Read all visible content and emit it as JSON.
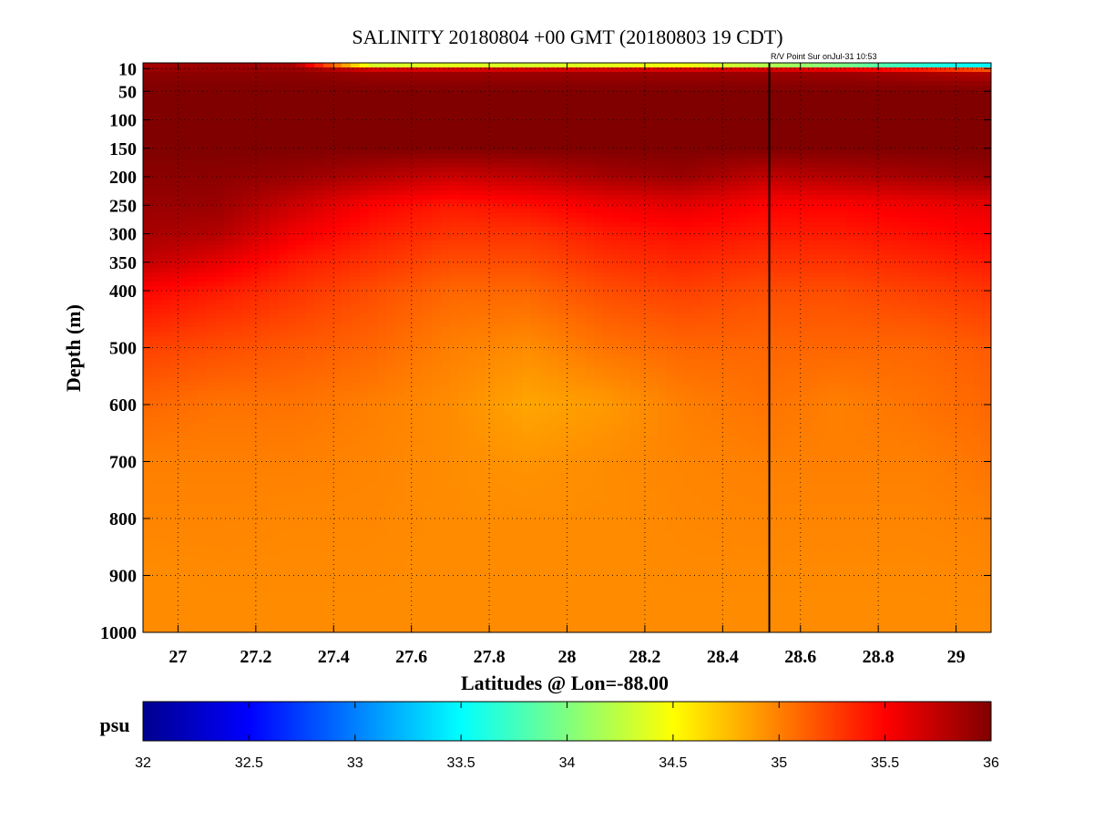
{
  "chart_data": {
    "type": "heatmap",
    "title": "SALINITY 20180804 +00 GMT (20180803 19 CDT)",
    "annotation": "R/V Point Sur onJul-31 10:53",
    "xlabel": "Latitudes @ Lon=-88.00",
    "ylabel": "Depth (m)",
    "xlim": [
      26.91,
      29.09
    ],
    "ylim": [
      1000,
      0
    ],
    "x_ticks": [
      27,
      27.2,
      27.4,
      27.6,
      27.8,
      28,
      28.2,
      28.4,
      28.6,
      28.8,
      29
    ],
    "x_tick_labels": [
      "27",
      "27.2",
      "27.4",
      "27.6",
      "27.8",
      "28",
      "28.2",
      "28.4",
      "28.6",
      "28.8",
      "29"
    ],
    "y_ticks": [
      10,
      50,
      100,
      150,
      200,
      250,
      300,
      350,
      400,
      500,
      600,
      700,
      800,
      900,
      1000
    ],
    "y_tick_labels": [
      "10",
      "50",
      "100",
      "150",
      "200",
      "250",
      "300",
      "350",
      "400",
      "500",
      "600",
      "700",
      "800",
      "900",
      "1000"
    ],
    "grid": true,
    "vertical_marker_latitude": 28.52,
    "colorbar": {
      "label": "psu",
      "range": [
        32,
        36
      ],
      "ticks": [
        32,
        32.5,
        33,
        33.5,
        34,
        34.5,
        35,
        35.5,
        36
      ],
      "tick_labels": [
        "32",
        "32.5",
        "33",
        "33.5",
        "34",
        "34.5",
        "35",
        "35.5",
        "36"
      ],
      "colormap": "jet",
      "placement": "bottom"
    },
    "latitudes": [
      26.9,
      27.1,
      27.3,
      27.5,
      27.7,
      27.9,
      28.1,
      28.3,
      28.5,
      28.7,
      28.9,
      29.1
    ],
    "depths": [
      0,
      10,
      20,
      50,
      100,
      150,
      200,
      250,
      300,
      350,
      400,
      500,
      600,
      700,
      800,
      900,
      1000
    ],
    "salinity": [
      [
        35.8,
        35.9,
        35.8,
        33.5,
        33.6,
        33.5,
        33.6,
        33.7,
        33.3,
        33.0,
        32.6,
        32.4
      ],
      [
        35.9,
        35.9,
        35.9,
        35.6,
        35.6,
        35.6,
        35.6,
        35.6,
        35.6,
        35.5,
        35.3,
        35.0
      ],
      [
        35.95,
        35.95,
        35.95,
        35.9,
        35.9,
        35.9,
        35.9,
        35.9,
        35.9,
        35.9,
        35.85,
        35.8
      ],
      [
        36.0,
        36.0,
        36.0,
        36.0,
        36.0,
        36.0,
        36.0,
        36.0,
        36.0,
        36.0,
        36.0,
        36.0
      ],
      [
        36.0,
        36.0,
        36.0,
        36.0,
        36.0,
        36.0,
        36.0,
        36.0,
        36.0,
        36.0,
        36.0,
        36.0
      ],
      [
        36.0,
        36.0,
        36.0,
        36.0,
        36.0,
        36.0,
        36.0,
        36.0,
        36.0,
        36.0,
        36.0,
        36.0
      ],
      [
        35.95,
        35.95,
        35.9,
        35.8,
        35.7,
        35.75,
        35.85,
        35.9,
        35.75,
        35.8,
        35.85,
        35.9
      ],
      [
        35.9,
        35.9,
        35.7,
        35.5,
        35.4,
        35.45,
        35.55,
        35.6,
        35.5,
        35.5,
        35.55,
        35.6
      ],
      [
        35.85,
        35.8,
        35.55,
        35.4,
        35.3,
        35.3,
        35.4,
        35.45,
        35.4,
        35.4,
        35.45,
        35.5
      ],
      [
        35.75,
        35.6,
        35.4,
        35.3,
        35.2,
        35.2,
        35.3,
        35.35,
        35.3,
        35.3,
        35.35,
        35.4
      ],
      [
        35.5,
        35.4,
        35.3,
        35.2,
        35.1,
        35.1,
        35.2,
        35.25,
        35.2,
        35.2,
        35.25,
        35.3
      ],
      [
        35.25,
        35.2,
        35.15,
        35.1,
        35.0,
        34.95,
        35.05,
        35.1,
        35.1,
        35.1,
        35.1,
        35.15
      ],
      [
        35.1,
        35.05,
        35.05,
        35.0,
        34.95,
        34.85,
        34.9,
        35.0,
        35.05,
        35.0,
        35.05,
        35.1
      ],
      [
        35.0,
        35.0,
        35.0,
        34.98,
        34.95,
        34.92,
        34.95,
        34.98,
        35.0,
        35.0,
        35.0,
        35.05
      ],
      [
        34.98,
        34.98,
        34.97,
        34.97,
        34.95,
        34.95,
        34.95,
        34.97,
        34.98,
        34.98,
        34.98,
        35.0
      ],
      [
        34.95,
        34.96,
        34.96,
        34.96,
        34.95,
        34.95,
        34.95,
        34.96,
        34.96,
        34.96,
        34.96,
        34.97
      ],
      [
        34.95,
        34.95,
        34.95,
        34.95,
        34.95,
        34.95,
        34.95,
        34.95,
        34.95,
        34.95,
        34.95,
        34.95
      ]
    ]
  }
}
